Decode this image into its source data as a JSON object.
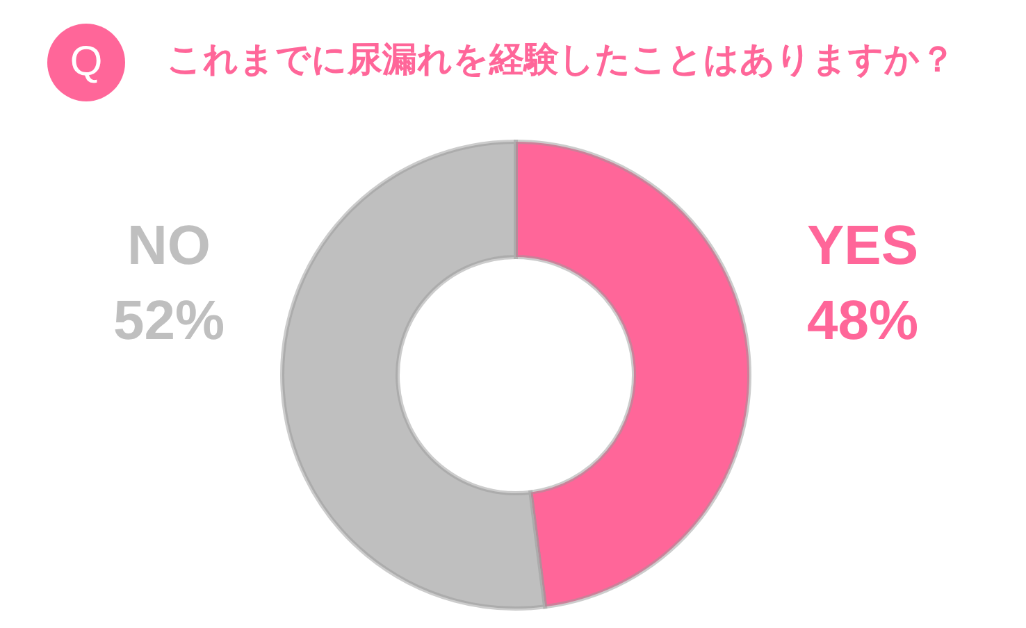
{
  "chart_data": {
    "type": "donut",
    "title": "これまでに尿漏れを経験したことはありますか？",
    "annotations": [
      "Q"
    ],
    "categories": [
      "YES",
      "NO"
    ],
    "values": [
      48,
      52
    ],
    "value_labels": [
      "48%",
      "52%"
    ],
    "colors": [
      "#ff6699",
      "#bfbfbf"
    ],
    "legend": false
  }
}
